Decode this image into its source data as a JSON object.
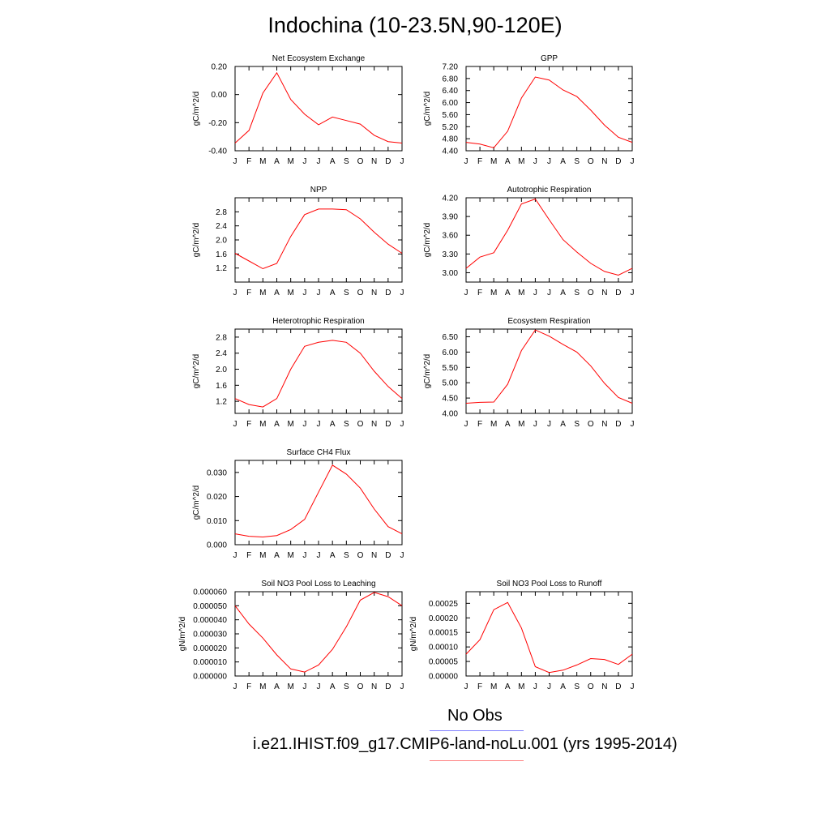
{
  "page": {
    "title": "Indochina (10-23.5N,90-120E)"
  },
  "colors": {
    "model_line": "#ff0000",
    "obs_line": "#8080ff",
    "model_legend_line": "#ff8080",
    "frame": "#000000"
  },
  "legend": {
    "obs_label": "No Obs",
    "model_label": "i.e21.IHIST.f09_g17.CMIP6-land-noLu.001 (yrs 1995-2014)"
  },
  "chart_data": [
    {
      "type": "line",
      "title": "Net Ecosystem Exchange",
      "ylabel": "gC/m^2/d",
      "x": [
        "J",
        "F",
        "M",
        "A",
        "M",
        "J",
        "J",
        "A",
        "S",
        "O",
        "N",
        "D",
        "J"
      ],
      "ylim": [
        -0.4,
        0.2
      ],
      "yticks": [
        -0.4,
        -0.2,
        0.0,
        0.2
      ],
      "ytick_labels": [
        "-0.40",
        "-0.20",
        "0.00",
        "0.20"
      ],
      "series": [
        {
          "values": [
            -0.345,
            -0.255,
            0.01,
            0.155,
            -0.035,
            -0.14,
            -0.215,
            -0.16,
            -0.185,
            -0.21,
            -0.29,
            -0.335,
            -0.345
          ]
        }
      ]
    },
    {
      "type": "line",
      "title": "GPP",
      "ylabel": "gC/m^2/d",
      "x": [
        "J",
        "F",
        "M",
        "A",
        "M",
        "J",
        "J",
        "A",
        "S",
        "O",
        "N",
        "D",
        "J"
      ],
      "ylim": [
        4.4,
        7.2
      ],
      "yticks": [
        4.4,
        4.8,
        5.2,
        5.6,
        6.0,
        6.4,
        6.8,
        7.2
      ],
      "ytick_labels": [
        "4.40",
        "4.80",
        "5.20",
        "5.60",
        "6.00",
        "6.40",
        "6.80",
        "7.20"
      ],
      "series": [
        {
          "values": [
            4.68,
            4.62,
            4.5,
            5.05,
            6.15,
            6.85,
            6.75,
            6.42,
            6.2,
            5.75,
            5.25,
            4.85,
            4.68
          ]
        }
      ]
    },
    {
      "type": "line",
      "title": "NPP",
      "ylabel": "gC/m^2/d",
      "x": [
        "J",
        "F",
        "M",
        "A",
        "M",
        "J",
        "J",
        "A",
        "S",
        "O",
        "N",
        "D",
        "J"
      ],
      "ylim": [
        0.8,
        3.2
      ],
      "yticks": [
        1.2,
        1.6,
        2.0,
        2.4,
        2.8
      ],
      "ytick_labels": [
        "1.2",
        "1.6",
        "2.0",
        "2.4",
        "2.8"
      ],
      "series": [
        {
          "values": [
            1.62,
            1.4,
            1.18,
            1.33,
            2.1,
            2.72,
            2.88,
            2.88,
            2.86,
            2.6,
            2.22,
            1.88,
            1.62
          ]
        }
      ]
    },
    {
      "type": "line",
      "title": "Autotrophic Respiration",
      "ylabel": "gC/m^2/d",
      "x": [
        "J",
        "F",
        "M",
        "A",
        "M",
        "J",
        "J",
        "A",
        "S",
        "O",
        "N",
        "D",
        "J"
      ],
      "ylim": [
        2.85,
        4.2
      ],
      "yticks": [
        3.0,
        3.3,
        3.6,
        3.9,
        4.2
      ],
      "ytick_labels": [
        "3.00",
        "3.30",
        "3.60",
        "3.90",
        "4.20"
      ],
      "series": [
        {
          "values": [
            3.07,
            3.25,
            3.32,
            3.68,
            4.1,
            4.18,
            3.85,
            3.53,
            3.33,
            3.15,
            3.02,
            2.96,
            3.07
          ]
        }
      ]
    },
    {
      "type": "line",
      "title": "Heterotrophic Respiration",
      "ylabel": "gC/m^2/d",
      "x": [
        "J",
        "F",
        "M",
        "A",
        "M",
        "J",
        "J",
        "A",
        "S",
        "O",
        "N",
        "D",
        "J"
      ],
      "ylim": [
        0.9,
        3.0
      ],
      "yticks": [
        1.2,
        1.6,
        2.0,
        2.4,
        2.8
      ],
      "ytick_labels": [
        "1.2",
        "1.6",
        "2.0",
        "2.4",
        "2.8"
      ],
      "series": [
        {
          "values": [
            1.27,
            1.12,
            1.06,
            1.27,
            2.0,
            2.57,
            2.67,
            2.72,
            2.67,
            2.4,
            1.95,
            1.57,
            1.27
          ]
        }
      ]
    },
    {
      "type": "line",
      "title": "Ecosystem Respiration",
      "ylabel": "gC/m^2/d",
      "x": [
        "J",
        "F",
        "M",
        "A",
        "M",
        "J",
        "J",
        "A",
        "S",
        "O",
        "N",
        "D",
        "J"
      ],
      "ylim": [
        4.0,
        6.75
      ],
      "yticks": [
        4.0,
        4.5,
        5.0,
        5.5,
        6.0,
        6.5
      ],
      "ytick_labels": [
        "4.00",
        "4.50",
        "5.00",
        "5.50",
        "6.00",
        "6.50"
      ],
      "series": [
        {
          "values": [
            4.33,
            4.36,
            4.37,
            4.95,
            6.05,
            6.72,
            6.52,
            6.25,
            6.0,
            5.55,
            4.98,
            4.52,
            4.33
          ]
        }
      ]
    },
    {
      "type": "line",
      "title": "Surface CH4 Flux",
      "ylabel": "gC/m^2/d",
      "x": [
        "J",
        "F",
        "M",
        "A",
        "M",
        "J",
        "J",
        "A",
        "S",
        "O",
        "N",
        "D",
        "J"
      ],
      "ylim": [
        0.0,
        0.035
      ],
      "yticks": [
        0.0,
        0.01,
        0.02,
        0.03
      ],
      "ytick_labels": [
        "0.000",
        "0.010",
        "0.020",
        "0.030"
      ],
      "series": [
        {
          "values": [
            0.0045,
            0.0035,
            0.0032,
            0.0038,
            0.0063,
            0.0105,
            0.0218,
            0.033,
            0.0293,
            0.0235,
            0.0148,
            0.0075,
            0.0045
          ]
        }
      ]
    },
    {
      "type": "line",
      "title": "Soil NO3 Pool Loss to Leaching",
      "ylabel": "gN/m^2/d",
      "x": [
        "J",
        "F",
        "M",
        "A",
        "M",
        "J",
        "J",
        "A",
        "S",
        "O",
        "N",
        "D",
        "J"
      ],
      "ylim": [
        0.0,
        6e-05
      ],
      "yticks": [
        0.0,
        1e-05,
        2e-05,
        3e-05,
        4e-05,
        5e-05,
        6e-05
      ],
      "ytick_labels": [
        "0.000000",
        "0.000010",
        "0.000020",
        "0.000030",
        "0.000040",
        "0.000050",
        "0.000060"
      ],
      "series": [
        {
          "values": [
            5e-05,
            3.7e-05,
            2.7e-05,
            1.5e-05,
            5e-06,
            2.8e-06,
            7.8e-06,
            1.9e-05,
            3.5e-05,
            5.4e-05,
            5.95e-05,
            5.65e-05,
            5e-05
          ]
        }
      ]
    },
    {
      "type": "line",
      "title": "Soil NO3 Pool Loss to Runoff",
      "ylabel": "gN/m^2/d",
      "x": [
        "J",
        "F",
        "M",
        "A",
        "M",
        "J",
        "J",
        "A",
        "S",
        "O",
        "N",
        "D",
        "J"
      ],
      "ylim": [
        0.0,
        0.00029
      ],
      "yticks": [
        0.0,
        5e-05,
        0.0001,
        0.00015,
        0.0002,
        0.00025
      ],
      "ytick_labels": [
        "0.00000",
        "0.00005",
        "0.00010",
        "0.00015",
        "0.00020",
        "0.00025"
      ],
      "series": [
        {
          "values": [
            7.5e-05,
            0.000125,
            0.000228,
            0.000253,
            0.000165,
            3.2e-05,
            1.2e-05,
            2e-05,
            3.8e-05,
            6e-05,
            5.7e-05,
            4e-05,
            7.5e-05
          ]
        }
      ]
    }
  ]
}
